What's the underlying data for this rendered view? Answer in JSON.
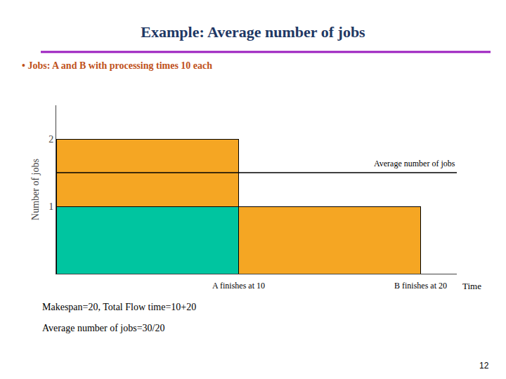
{
  "chart_data": {
    "type": "bar",
    "stacked": true,
    "title": "Example: Average number of jobs",
    "title_color": "#1F3864",
    "title_underline_color": "#9B1FBF",
    "subtitle": "• Jobs: A and B with processing times 10 each",
    "subtitle_color": "#C0511A",
    "x": [
      0,
      10
    ],
    "widths": [
      10,
      10
    ],
    "series": [
      {
        "color": "#00C5A0",
        "values": [
          1,
          null
        ]
      },
      {
        "color": "#F5A623",
        "values": [
          1,
          1
        ]
      }
    ],
    "ylabel": "Number of jobs",
    "xlim": [
      0,
      22
    ],
    "ylim": [
      0,
      2.5
    ],
    "yticks": [
      1,
      2
    ],
    "tick_labels": "y",
    "grid": false,
    "reference_line": {
      "y": 1.5,
      "label": "Average number of jobs",
      "color": "#000000"
    },
    "annotations": [
      {
        "text": "A finishes at 10",
        "x": 10
      },
      {
        "text": "B finishes at 20",
        "x": 20
      },
      {
        "text": "Time",
        "x": 22
      }
    ],
    "notes": [
      "Makespan=20, Total Flow time=10+20",
      "Average number of jobs=30/20"
    ],
    "page_number": "12",
    "background_color": "#FFFFFF"
  }
}
